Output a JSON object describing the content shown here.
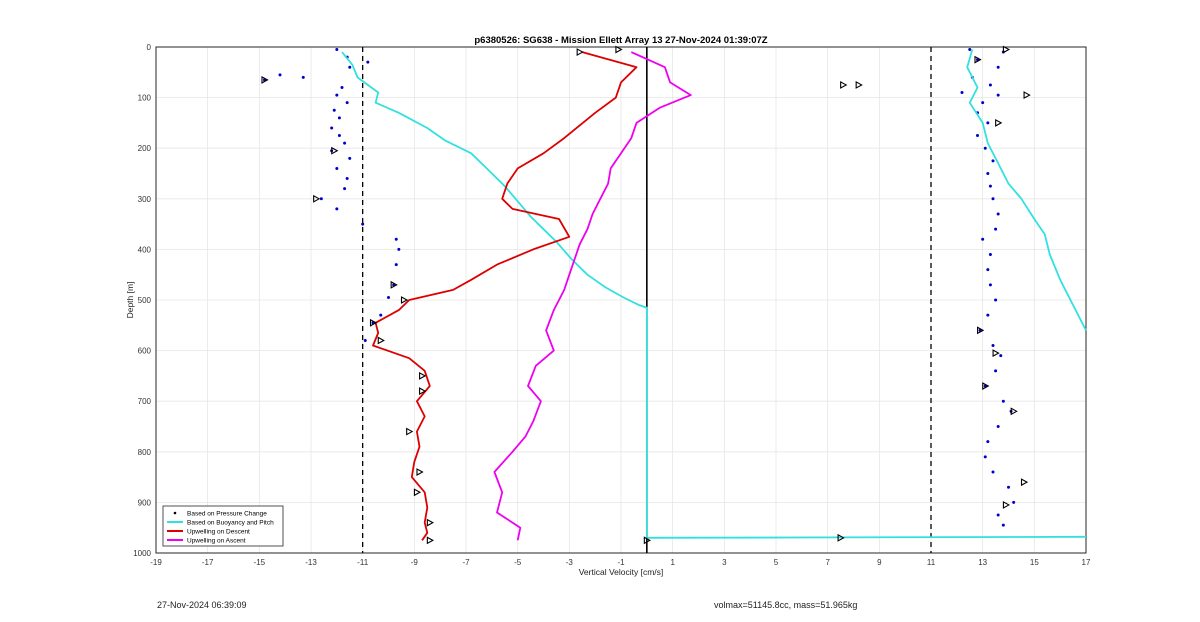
{
  "chart_data": {
    "type": "scatter",
    "title": "p6380526: SG638 - Mission Ellett Array 13 27-Nov-2024 01:39:07Z",
    "xlabel": "Vertical Velocity [cm/s]",
    "ylabel": "Depth [m]",
    "xlim": [
      -19,
      17
    ],
    "ylim": [
      1000,
      0
    ],
    "y_reversed": true,
    "xticks": [
      -19,
      -17,
      -15,
      -13,
      -11,
      -9,
      -7,
      -5,
      -3,
      -1,
      1,
      3,
      5,
      7,
      9,
      11,
      13,
      15,
      17
    ],
    "yticks": [
      0,
      100,
      200,
      300,
      400,
      500,
      600,
      700,
      800,
      900,
      1000
    ],
    "grid": true,
    "legend_position": "bottom-left",
    "reference_lines": [
      {
        "style": "dashed",
        "x": -11
      },
      {
        "style": "dashed",
        "x": 11
      },
      {
        "style": "solid",
        "x": 0
      }
    ],
    "colors": {
      "pressure": "#0000cc",
      "buoyancy": "#33e0e0",
      "descent": "#dd0000",
      "ascent": "#ee00ee",
      "markers": "#000000"
    },
    "series": [
      {
        "name": "Based on Pressure Change",
        "style": "dots",
        "points": [
          [
            -12,
            5
          ],
          [
            -11.6,
            20
          ],
          [
            -11.5,
            40
          ],
          [
            -10.8,
            30
          ],
          [
            -14.2,
            55
          ],
          [
            -14.8,
            65
          ],
          [
            -13.3,
            60
          ],
          [
            -11.8,
            80
          ],
          [
            -12,
            95
          ],
          [
            -11.6,
            110
          ],
          [
            -12.1,
            125
          ],
          [
            -11.9,
            140
          ],
          [
            -12.2,
            160
          ],
          [
            -11.9,
            175
          ],
          [
            -11.7,
            190
          ],
          [
            -12.2,
            205
          ],
          [
            -11.5,
            220
          ],
          [
            -12,
            240
          ],
          [
            -11.6,
            260
          ],
          [
            -11.7,
            280
          ],
          [
            -12.6,
            300
          ],
          [
            -12,
            320
          ],
          [
            -11,
            350
          ],
          [
            -9.7,
            380
          ],
          [
            -9.6,
            400
          ],
          [
            -9.7,
            430
          ],
          [
            -9.8,
            470
          ],
          [
            -10,
            495
          ],
          [
            -10.3,
            530
          ],
          [
            -10.6,
            545
          ],
          [
            -10.9,
            580
          ],
          [
            12.5,
            5
          ],
          [
            13.8,
            10
          ],
          [
            12.8,
            25
          ],
          [
            13.6,
            40
          ],
          [
            12.6,
            60
          ],
          [
            13.3,
            75
          ],
          [
            12.2,
            90
          ],
          [
            13.6,
            95
          ],
          [
            13,
            110
          ],
          [
            12.8,
            130
          ],
          [
            13.2,
            150
          ],
          [
            12.8,
            175
          ],
          [
            13.1,
            200
          ],
          [
            13.4,
            225
          ],
          [
            13.2,
            250
          ],
          [
            13.3,
            275
          ],
          [
            13.4,
            300
          ],
          [
            13.6,
            330
          ],
          [
            13.5,
            360
          ],
          [
            13,
            380
          ],
          [
            13.3,
            410
          ],
          [
            13.2,
            440
          ],
          [
            13.3,
            470
          ],
          [
            13.5,
            500
          ],
          [
            13.2,
            530
          ],
          [
            12.9,
            560
          ],
          [
            13.4,
            590
          ],
          [
            13.7,
            610
          ],
          [
            13.5,
            640
          ],
          [
            13.1,
            670
          ],
          [
            13.8,
            700
          ],
          [
            14.1,
            720
          ],
          [
            13.6,
            750
          ],
          [
            13.2,
            780
          ],
          [
            13.1,
            810
          ],
          [
            13.4,
            840
          ],
          [
            14,
            870
          ],
          [
            14.2,
            900
          ],
          [
            13.6,
            925
          ],
          [
            13.8,
            945
          ]
        ]
      },
      {
        "name": "Based on Buoyancy and Pitch",
        "style": "line",
        "points": [
          [
            -11.8,
            10
          ],
          [
            -11.4,
            35
          ],
          [
            -11.2,
            60
          ],
          [
            -10.4,
            90
          ],
          [
            -10.5,
            110
          ],
          [
            -9.6,
            130
          ],
          [
            -8.5,
            160
          ],
          [
            -7.8,
            185
          ],
          [
            -6.8,
            210
          ],
          [
            -6.2,
            240
          ],
          [
            -5.5,
            275
          ],
          [
            -5,
            305
          ],
          [
            -4.5,
            335
          ],
          [
            -4,
            360
          ],
          [
            -3.5,
            385
          ],
          [
            -2.9,
            420
          ],
          [
            -2.3,
            450
          ],
          [
            -1.6,
            475
          ],
          [
            -0.9,
            495
          ],
          [
            -0.3,
            510
          ],
          [
            0,
            515
          ],
          [
            0,
            970
          ],
          [
            12.6,
            5
          ],
          [
            12.4,
            40
          ],
          [
            12.8,
            80
          ],
          [
            12.5,
            110
          ],
          [
            13,
            150
          ],
          [
            13.2,
            190
          ],
          [
            13.6,
            230
          ],
          [
            14,
            270
          ],
          [
            14.5,
            300
          ],
          [
            15,
            340
          ],
          [
            15.4,
            370
          ],
          [
            15.6,
            410
          ],
          [
            16,
            460
          ],
          [
            16.5,
            510
          ],
          [
            17,
            560
          ]
        ]
      },
      {
        "name": "Upwelling on Descent",
        "style": "line",
        "points": [
          [
            -2.5,
            10
          ],
          [
            -0.4,
            40
          ],
          [
            -1,
            70
          ],
          [
            -1.2,
            100
          ],
          [
            -2,
            130
          ],
          [
            -2.6,
            155
          ],
          [
            -3.2,
            180
          ],
          [
            -4,
            210
          ],
          [
            -5,
            240
          ],
          [
            -5.4,
            270
          ],
          [
            -5.6,
            300
          ],
          [
            -5.2,
            320
          ],
          [
            -3.4,
            340
          ],
          [
            -3,
            375
          ],
          [
            -4.4,
            400
          ],
          [
            -5.8,
            430
          ],
          [
            -6.8,
            460
          ],
          [
            -7.5,
            480
          ],
          [
            -9.2,
            500
          ],
          [
            -9.6,
            520
          ],
          [
            -10.5,
            545
          ],
          [
            -10.4,
            565
          ],
          [
            -10.6,
            590
          ],
          [
            -9.2,
            615
          ],
          [
            -8.6,
            640
          ],
          [
            -8.4,
            670
          ],
          [
            -8.9,
            700
          ],
          [
            -8.6,
            730
          ],
          [
            -8.9,
            760
          ],
          [
            -8.8,
            790
          ],
          [
            -9,
            820
          ],
          [
            -9.1,
            850
          ],
          [
            -8.6,
            880
          ],
          [
            -8.5,
            910
          ],
          [
            -8.6,
            940
          ],
          [
            -8.5,
            960
          ],
          [
            -8.7,
            975
          ]
        ]
      },
      {
        "name": "Upwelling on Ascent",
        "style": "line",
        "points": [
          [
            -0.6,
            10
          ],
          [
            0.7,
            40
          ],
          [
            0.9,
            70
          ],
          [
            1.7,
            95
          ],
          [
            0.5,
            120
          ],
          [
            -0.4,
            150
          ],
          [
            -0.6,
            180
          ],
          [
            -1,
            210
          ],
          [
            -1.4,
            240
          ],
          [
            -1.5,
            270
          ],
          [
            -1.8,
            300
          ],
          [
            -2.1,
            330
          ],
          [
            -2.3,
            360
          ],
          [
            -2.6,
            390
          ],
          [
            -2.8,
            420
          ],
          [
            -3,
            450
          ],
          [
            -3.2,
            480
          ],
          [
            -3.6,
            520
          ],
          [
            -3.9,
            560
          ],
          [
            -3.6,
            600
          ],
          [
            -4.3,
            630
          ],
          [
            -4.6,
            670
          ],
          [
            -4.1,
            700
          ],
          [
            -4.4,
            740
          ],
          [
            -4.7,
            770
          ],
          [
            -5.2,
            800
          ],
          [
            -5.9,
            840
          ],
          [
            -5.6,
            880
          ],
          [
            -5.8,
            920
          ],
          [
            -4.9,
            950
          ],
          [
            -5,
            975
          ]
        ]
      }
    ],
    "triangle_markers": [
      [
        -2.6,
        10
      ],
      [
        -1.1,
        5
      ],
      [
        -14.8,
        65
      ],
      [
        -12.1,
        205
      ],
      [
        -12.8,
        300
      ],
      [
        -10.6,
        545
      ],
      [
        -9.4,
        500
      ],
      [
        -9.8,
        470
      ],
      [
        -10.3,
        580
      ],
      [
        -8.7,
        650
      ],
      [
        -8.7,
        680
      ],
      [
        -9.2,
        760
      ],
      [
        -8.8,
        840
      ],
      [
        -8.9,
        880
      ],
      [
        -8.4,
        940
      ],
      [
        7.6,
        75
      ],
      [
        13.9,
        5
      ],
      [
        12.8,
        25
      ],
      [
        14.7,
        95
      ],
      [
        13.6,
        150
      ],
      [
        12.9,
        560
      ],
      [
        13.5,
        605
      ],
      [
        13.1,
        670
      ],
      [
        14.2,
        720
      ],
      [
        13.9,
        905
      ],
      [
        14.6,
        860
      ],
      [
        8.2,
        75
      ],
      [
        0,
        975
      ],
      [
        7.5,
        970
      ],
      [
        -8.4,
        975
      ]
    ]
  },
  "footer": {
    "timestamp": "27-Nov-2024 06:39:09",
    "info": "volmax=51145.8cc, mass=51.965kg"
  }
}
